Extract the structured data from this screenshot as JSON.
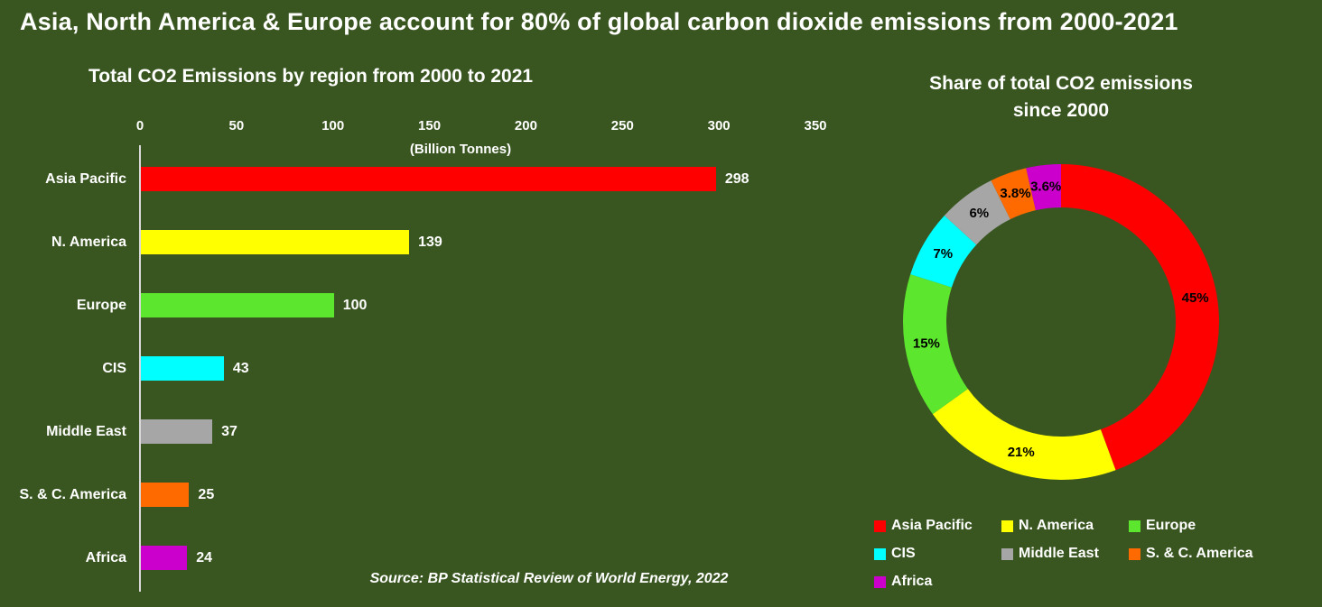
{
  "title": "Asia, North America & Europe account for 80% of global carbon dioxide emissions from 2000-2021",
  "source": "Source: BP Statistical Review of World Energy, 2022",
  "colors": {
    "background": "#395621",
    "text": "#FFFFFF",
    "axis_line": "#D9D9D9",
    "slice_label_text": "#000000"
  },
  "chart_data": [
    {
      "type": "bar",
      "orientation": "horizontal",
      "title": "Total CO2 Emissions by region from 2000 to 2021",
      "categories": [
        "Asia Pacific",
        "N. America",
        "Europe",
        "CIS",
        "Middle East",
        "S. & C. America",
        "Africa"
      ],
      "values": [
        298,
        139,
        100,
        43,
        37,
        25,
        24
      ],
      "value_labels": [
        "298",
        "139",
        "100",
        "43",
        "37",
        "25",
        "24"
      ],
      "bar_colors": [
        "#FF0000",
        "#FFFF00",
        "#5CE62E",
        "#00FFFF",
        "#A6A6A6",
        "#FF6A00",
        "#CC00CC"
      ],
      "xlabel": "(Billion Tonnes)",
      "xlim": [
        0,
        350
      ],
      "xticks": [
        "0",
        "50",
        "100",
        "150",
        "200",
        "250",
        "300",
        "350"
      ],
      "grid": false
    },
    {
      "type": "pie",
      "subtype": "donut",
      "title": "Share of total CO2 emissions since 2000",
      "title_lines": [
        "Share of total CO2 emissions",
        "since 2000"
      ],
      "categories": [
        "Asia Pacific",
        "N. America",
        "Europe",
        "CIS",
        "Middle East",
        "S. & C. America",
        "Africa"
      ],
      "values": [
        45,
        21,
        15,
        7,
        6,
        3.8,
        3.6
      ],
      "slice_labels": [
        "45%",
        "21%",
        "15%",
        "7%",
        "6%",
        "3.8%",
        "3.6%"
      ],
      "colors": [
        "#FF0000",
        "#FFFF00",
        "#5CE62E",
        "#00FFFF",
        "#A6A6A6",
        "#FF6A00",
        "#CC00CC"
      ],
      "start_angle_deg": 0,
      "direction": "clockwise",
      "legend_position": "bottom"
    }
  ]
}
